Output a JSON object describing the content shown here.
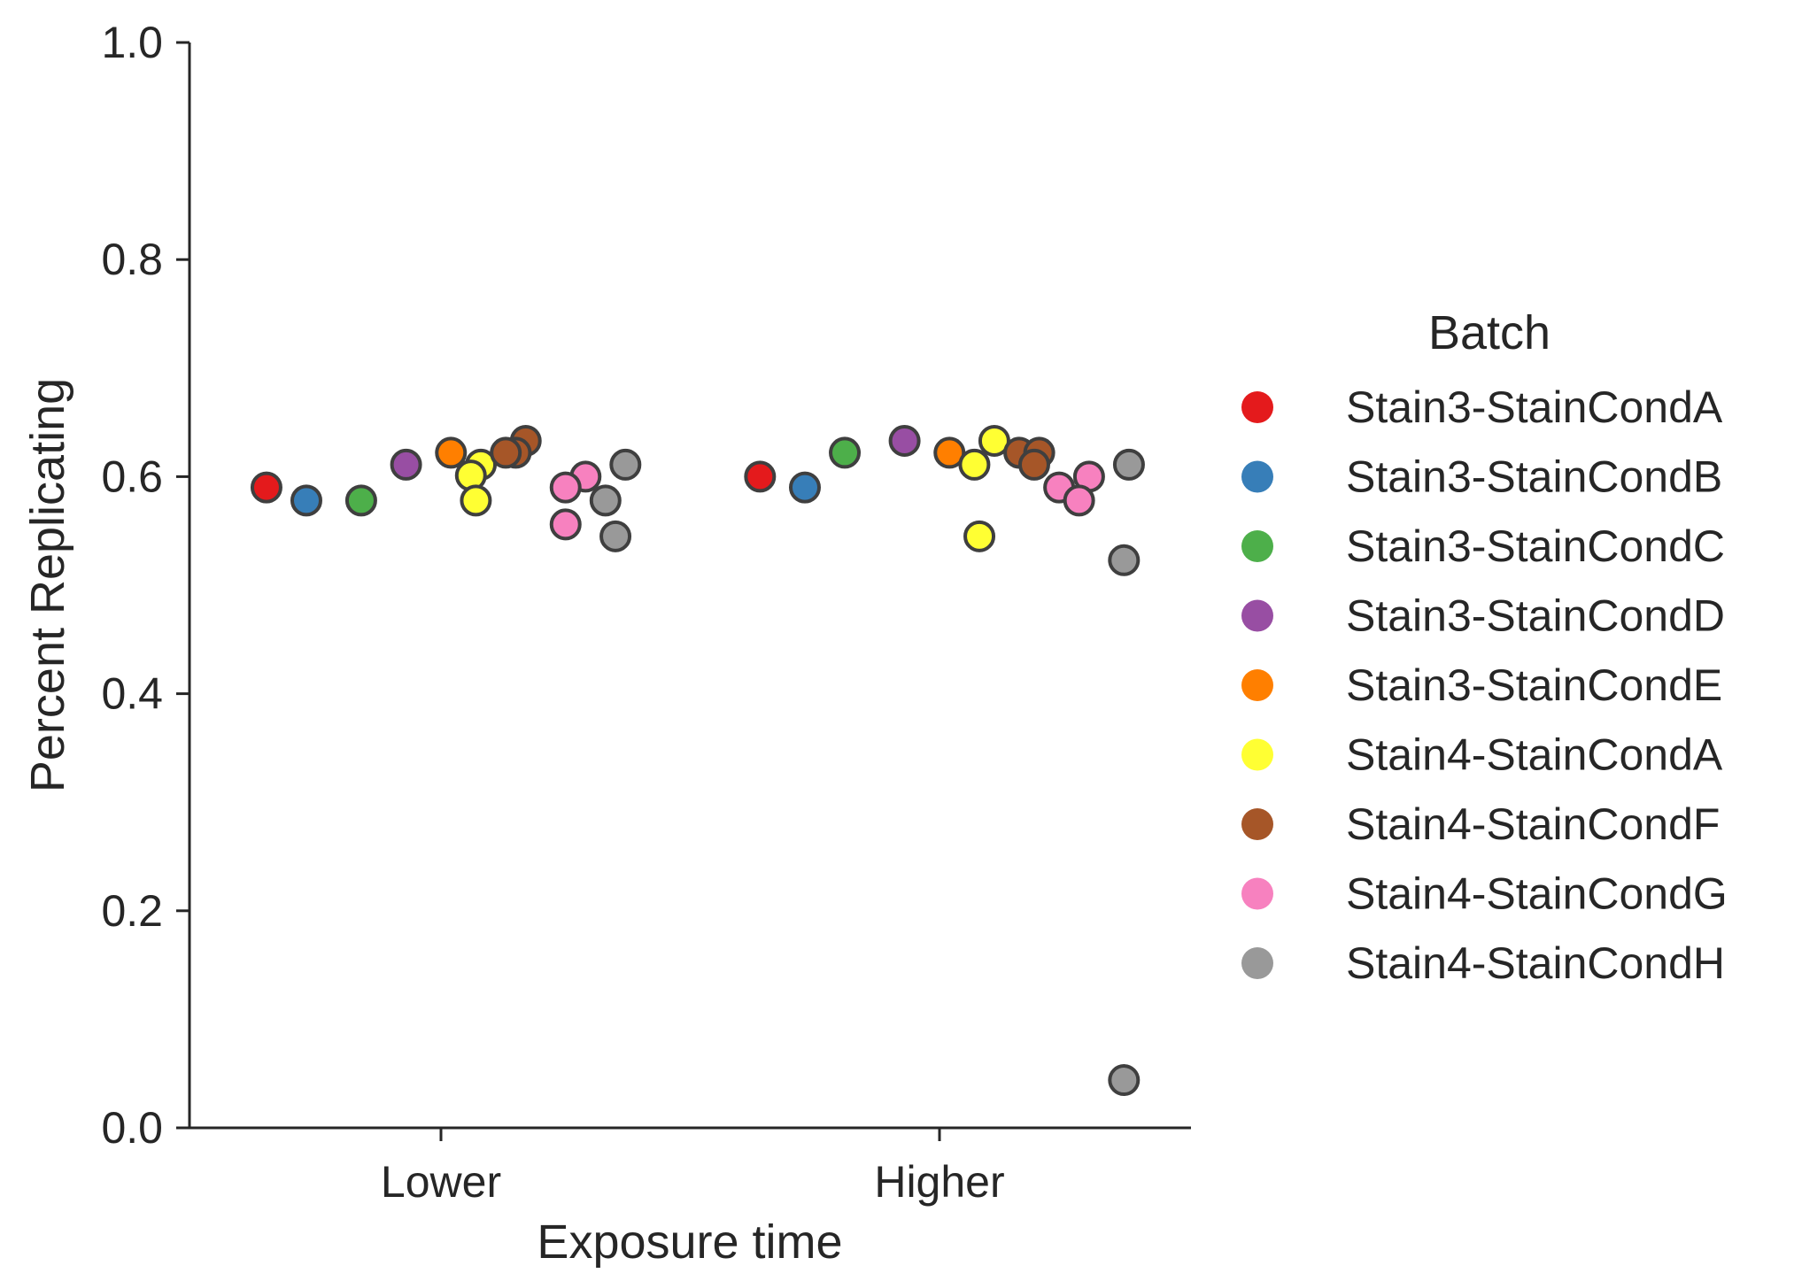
{
  "chart_data": {
    "type": "scatter",
    "xlabel": "Exposure time",
    "ylabel": "Percent Replicating",
    "categories": [
      "Lower",
      "Higher"
    ],
    "ylim": [
      0.0,
      1.0
    ],
    "yticks": [
      "0.0",
      "0.2",
      "0.4",
      "0.6",
      "0.8",
      "1.0"
    ],
    "grid": false,
    "legend": {
      "title": "Batch",
      "placement": "right"
    },
    "series": [
      {
        "name": "Stain3-StainCondA",
        "color": "#e41a1c",
        "points": [
          {
            "x": "Lower",
            "jitter": -0.35,
            "y": 0.59
          },
          {
            "x": "Higher",
            "jitter": -0.36,
            "y": 0.6
          }
        ]
      },
      {
        "name": "Stain3-StainCondB",
        "color": "#377eb8",
        "points": [
          {
            "x": "Lower",
            "jitter": -0.27,
            "y": 0.578
          },
          {
            "x": "Higher",
            "jitter": -0.27,
            "y": 0.59
          }
        ]
      },
      {
        "name": "Stain3-StainCondC",
        "color": "#4daf4a",
        "points": [
          {
            "x": "Lower",
            "jitter": -0.16,
            "y": 0.578
          },
          {
            "x": "Higher",
            "jitter": -0.19,
            "y": 0.622
          }
        ]
      },
      {
        "name": "Stain3-StainCondD",
        "color": "#984ea3",
        "points": [
          {
            "x": "Lower",
            "jitter": -0.07,
            "y": 0.611
          },
          {
            "x": "Higher",
            "jitter": -0.07,
            "y": 0.633
          }
        ]
      },
      {
        "name": "Stain3-StainCondE",
        "color": "#ff7f00",
        "points": [
          {
            "x": "Lower",
            "jitter": 0.02,
            "y": 0.622
          },
          {
            "x": "Higher",
            "jitter": 0.02,
            "y": 0.622
          }
        ]
      },
      {
        "name": "Stain4-StainCondA",
        "color": "#ffff33",
        "points": [
          {
            "x": "Lower",
            "jitter": 0.08,
            "y": 0.611
          },
          {
            "x": "Lower",
            "jitter": 0.06,
            "y": 0.601
          },
          {
            "x": "Lower",
            "jitter": 0.07,
            "y": 0.578
          },
          {
            "x": "Higher",
            "jitter": 0.11,
            "y": 0.633
          },
          {
            "x": "Higher",
            "jitter": 0.07,
            "y": 0.611
          },
          {
            "x": "Higher",
            "jitter": 0.08,
            "y": 0.545
          }
        ]
      },
      {
        "name": "Stain4-StainCondF",
        "color": "#a65628",
        "points": [
          {
            "x": "Lower",
            "jitter": 0.17,
            "y": 0.633
          },
          {
            "x": "Lower",
            "jitter": 0.15,
            "y": 0.622
          },
          {
            "x": "Lower",
            "jitter": 0.13,
            "y": 0.622
          },
          {
            "x": "Higher",
            "jitter": 0.16,
            "y": 0.622
          },
          {
            "x": "Higher",
            "jitter": 0.2,
            "y": 0.622
          },
          {
            "x": "Higher",
            "jitter": 0.19,
            "y": 0.611
          }
        ]
      },
      {
        "name": "Stain4-StainCondG",
        "color": "#f781bf",
        "points": [
          {
            "x": "Lower",
            "jitter": 0.29,
            "y": 0.6
          },
          {
            "x": "Lower",
            "jitter": 0.25,
            "y": 0.59
          },
          {
            "x": "Lower",
            "jitter": 0.25,
            "y": 0.556
          },
          {
            "x": "Higher",
            "jitter": 0.3,
            "y": 0.6
          },
          {
            "x": "Higher",
            "jitter": 0.24,
            "y": 0.59
          },
          {
            "x": "Higher",
            "jitter": 0.28,
            "y": 0.578
          }
        ]
      },
      {
        "name": "Stain4-StainCondH",
        "color": "#999999",
        "points": [
          {
            "x": "Lower",
            "jitter": 0.37,
            "y": 0.611
          },
          {
            "x": "Lower",
            "jitter": 0.33,
            "y": 0.578
          },
          {
            "x": "Lower",
            "jitter": 0.35,
            "y": 0.545
          },
          {
            "x": "Higher",
            "jitter": 0.38,
            "y": 0.611
          },
          {
            "x": "Higher",
            "jitter": 0.37,
            "y": 0.523
          },
          {
            "x": "Higher",
            "jitter": 0.37,
            "y": 0.044
          }
        ]
      }
    ]
  }
}
